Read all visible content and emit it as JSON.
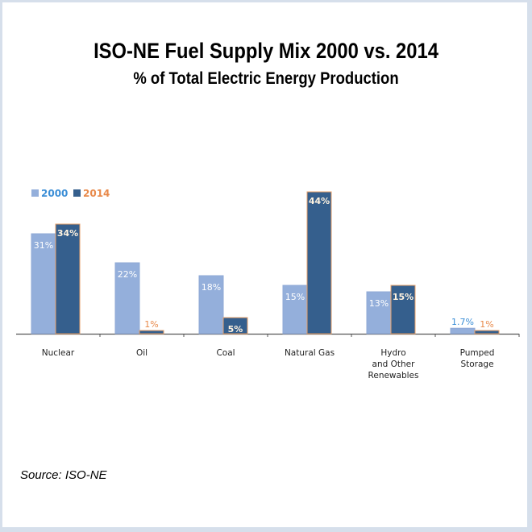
{
  "chart_data": {
    "type": "bar",
    "title": "ISO-NE Fuel Supply Mix 2000 vs. 2014",
    "subtitle": "% of Total Electric Energy Production",
    "categories": [
      [
        "Nuclear"
      ],
      [
        "Oil"
      ],
      [
        "Coal"
      ],
      [
        "Natural Gas"
      ],
      [
        "Hydro",
        "and Other",
        "Renewables"
      ],
      [
        "Pumped",
        "Storage"
      ]
    ],
    "series": [
      {
        "name": "2000",
        "values": [
          31,
          22,
          18,
          15,
          13,
          1.7
        ],
        "labels": [
          "31%",
          "22%",
          "18%",
          "15%",
          "13%",
          "1.7%"
        ],
        "color": "#94afdb",
        "label_color": "#ffffff",
        "legend_color": "#3b8ed6"
      },
      {
        "name": "2014",
        "values": [
          34,
          1,
          5,
          44,
          15,
          1
        ],
        "labels": [
          "34%",
          "1%",
          "5%",
          "44%",
          "15%",
          "1%"
        ],
        "color": "#355f8d",
        "label_color": "#fff3e0",
        "legend_color": "#e8894a",
        "edge": "#e8a06a"
      }
    ],
    "ylim": [
      0,
      44
    ],
    "xlabel": "",
    "ylabel": "",
    "grid": false,
    "legend": "top-left"
  },
  "footer": {
    "source": "Source: ISO-NE"
  }
}
